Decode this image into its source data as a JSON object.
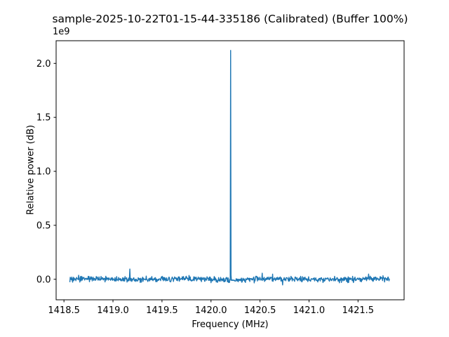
{
  "figure": {
    "background": "#ffffff",
    "text_color": "#000000"
  },
  "chart_data": {
    "type": "line",
    "title": "sample-2025-10-22T01-15-44-335186 (Calibrated) (Buffer 100%)",
    "xlabel": "Frequency (MHz)",
    "ylabel": "Relative power (dB)",
    "y_offset_text": "1e9",
    "line_color": "#1f77b4",
    "legend": "none",
    "grid": false,
    "xlim": [
      1418.42,
      1421.97
    ],
    "ylim": [
      -190000000.0,
      2210000000.0
    ],
    "x_ticks": [
      1418.5,
      1419.0,
      1419.5,
      1420.0,
      1420.5,
      1421.0,
      1421.5
    ],
    "y_ticks": [
      0.0,
      500000000.0,
      1000000000.0,
      1500000000.0,
      2000000000.0
    ],
    "x_start": 1418.56,
    "x_end": 1421.82,
    "n_points": 800,
    "peak": {
      "frequency_mhz": 1420.2,
      "value": 2120000000.0
    },
    "secondary_spike": {
      "frequency_mhz": 1419.17,
      "value": 95000000.0
    },
    "noise": {
      "mean": 0,
      "std": 13000000.0,
      "wobble": 4000000.0,
      "spike_probability": 0.03,
      "spike_gain": 2.3,
      "seed": 42
    }
  }
}
